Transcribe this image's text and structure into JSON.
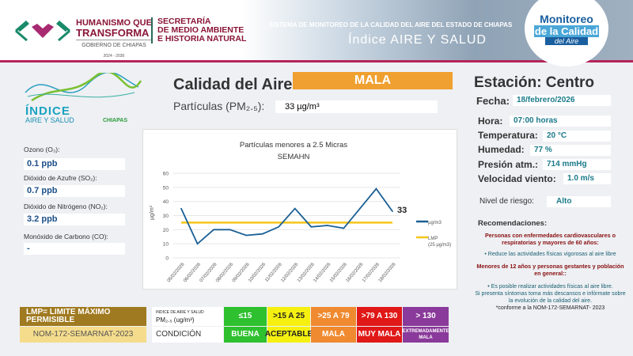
{
  "header": {
    "gov_line1": "HUMANISMO QUE",
    "gov_line2": "TRANSFORMA",
    "gov_sub": "GOBIERNO DE CHIAPAS",
    "gov_years": "2024 - 2030",
    "sec_1": "SECRETARÍA",
    "sec_2": "DE MEDIO AMBIENTE",
    "sec_3": "E HISTORIA NATURAL",
    "system": "SISTEMA DE MONITOREO DE LA CALIDAD DEL AIRE DEL ESTADO DE CHIAPAS",
    "index_title": "Índice AIRE Y SALUD",
    "monitoreo_1": "Monitoreo",
    "monitoreo_2": "de la Calidad",
    "monitoreo_3": "del Aire"
  },
  "indice_logo": {
    "t1": "ÍNDICE",
    "t2": "AIRE Y SALUD",
    "t3": "CHIAPAS"
  },
  "pollutants": [
    {
      "label": "Ozono (O₃):",
      "value": "0.1 ppb"
    },
    {
      "label": "Dióxido de Azufre  (SO₂):",
      "value": "0.7 ppb"
    },
    {
      "label": "Dióxido de Nitrógeno (NO₂):",
      "value": "3.2 ppb"
    },
    {
      "label": "Monóxido de Carbono (CO):",
      "value": "-"
    }
  ],
  "quality": {
    "label": "Calidad del Aire:",
    "value": "MALA",
    "color": "#f0a030",
    "pm_label": "Partículas (PM₂.₅):",
    "pm_value": "33 µg/m³"
  },
  "station": {
    "title": "Estación: Centro",
    "fields": [
      {
        "label": "Fecha:",
        "value": "18/febrero/2026"
      },
      {
        "label": "Hora:",
        "value": "07:00 horas"
      },
      {
        "label": "Temperatura:",
        "value": "20 °C"
      },
      {
        "label": "Humedad:",
        "value": "77 %"
      },
      {
        "label": "Presión atm.:",
        "value": "714 mmHg"
      },
      {
        "label": "Velocidad viento:",
        "value": "1.0 m/s"
      }
    ],
    "risk_label": "Nivel de riesgo:",
    "risk_value": "Alto"
  },
  "recommendations": {
    "title": "Recomendaciones:",
    "group1": "Personas con enfermedades cardiovasculares o respiratorias y mayores de 60 años:",
    "rec1": "• Reduce las actividades físicas vigorosas al aire libre",
    "group2": "Menores de 12 años y personas gestantes y población en general::",
    "rec2": "• Es posible realizar actividades físicas al aire libre.",
    "rec3": "Si presenta síntomas toma más descansos e infórmate sobre la evolución de la calidad del aire.",
    "note": "*conforme a la NOM-172-SEMARNAT- 2023"
  },
  "legend": {
    "lmp": "LMP= LIMITE MÁXIMO PERMISIBLE",
    "norm": "NOM-172-SEMARNAT-2023",
    "idx_small": "INDICE DE AIRE Y SALUD",
    "idx_pm": "PM₂.₅ (ug/m³)",
    "condition": "CONDICIÓN",
    "ranges": [
      {
        "range": "≤15",
        "cond": "BUENA",
        "color": "#2ec02e"
      },
      {
        "range": ">15 A 25",
        "cond": "ACEPTABLE",
        "color": "#f5f010"
      },
      {
        "range": ">25 A 79",
        "cond": "MALA",
        "color": "#f08a30"
      },
      {
        "range": ">79 A 130",
        "cond": "MUY MALA",
        "color": "#e01818"
      },
      {
        "range": "> 130",
        "cond": "EXTREMADAMENTE MALA",
        "color": "#8a3a9a"
      }
    ]
  },
  "chart_data": {
    "type": "line",
    "title": "Partículas  menores a 2.5 Micras",
    "subtitle": "SEMAHN",
    "ylabel": "µg/m³",
    "ylim": [
      0,
      60
    ],
    "yticks": [
      0,
      10,
      20,
      30,
      40,
      50,
      60
    ],
    "grid": true,
    "legend_position": "right",
    "categories": [
      "05/02/2026",
      "06/02/2026",
      "07/02/2026",
      "08/02/2026",
      "09/02/2026",
      "10/02/2026",
      "11/02/2026",
      "12/02/2026",
      "13/02/2026",
      "14/02/2026",
      "15/02/2026",
      "16/02/2026",
      "17/02/2026",
      "18/02/2026"
    ],
    "series": [
      {
        "name": "µg/m3",
        "color": "#1a5f95",
        "values": [
          35,
          10,
          20,
          20,
          16,
          17,
          22,
          35,
          22,
          23,
          21,
          35,
          49,
          33
        ]
      },
      {
        "name": "LMP",
        "name_sub": "(25 µg/m3)",
        "color": "#f5c518",
        "values": [
          25,
          25,
          25,
          25,
          25,
          25,
          25,
          25,
          25,
          25,
          25,
          25,
          25,
          25
        ]
      }
    ],
    "last_label": "33"
  }
}
